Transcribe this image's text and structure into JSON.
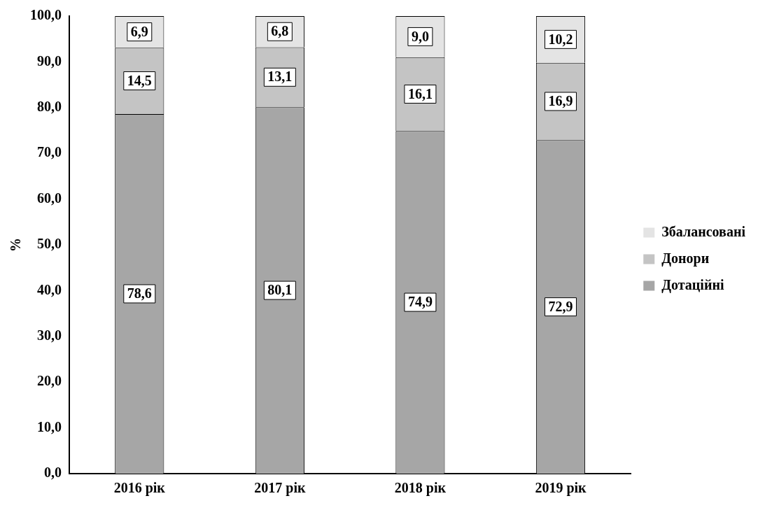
{
  "chart_data": {
    "type": "bar",
    "stacked": true,
    "ylabel": "%",
    "categories": [
      "2016 рік",
      "2017 рік",
      "2018 рік",
      "2019 рік"
    ],
    "series": [
      {
        "name": "Дотаційні",
        "color": "#a6a6a6",
        "values": [
          78.6,
          80.1,
          74.9,
          72.9
        ],
        "value_labels": [
          "78,6",
          "80,1",
          "74,9",
          "72,9"
        ]
      },
      {
        "name": "Донори",
        "color": "#c4c4c4",
        "values": [
          14.5,
          13.1,
          16.1,
          16.9
        ],
        "value_labels": [
          "14,5",
          "13,1",
          "16,1",
          "16,9"
        ]
      },
      {
        "name": "Збалансовані",
        "color": "#e4e4e4",
        "values": [
          6.9,
          6.8,
          9.0,
          10.2
        ],
        "value_labels": [
          "6,9",
          "6,8",
          "9,0",
          "10,2"
        ]
      }
    ],
    "ylim": [
      0,
      100
    ],
    "yticks": [
      {
        "value": 0,
        "label": "0,0"
      },
      {
        "value": 10,
        "label": "10,0"
      },
      {
        "value": 20,
        "label": "20,0"
      },
      {
        "value": 30,
        "label": "30,0"
      },
      {
        "value": 40,
        "label": "40,0"
      },
      {
        "value": 50,
        "label": "50,0"
      },
      {
        "value": 60,
        "label": "60,0"
      },
      {
        "value": 70,
        "label": "70,0"
      },
      {
        "value": 80,
        "label": "80,0"
      },
      {
        "value": 90,
        "label": "90,0"
      },
      {
        "value": 100,
        "label": "100,0"
      }
    ],
    "grid": false,
    "legend": "right"
  }
}
